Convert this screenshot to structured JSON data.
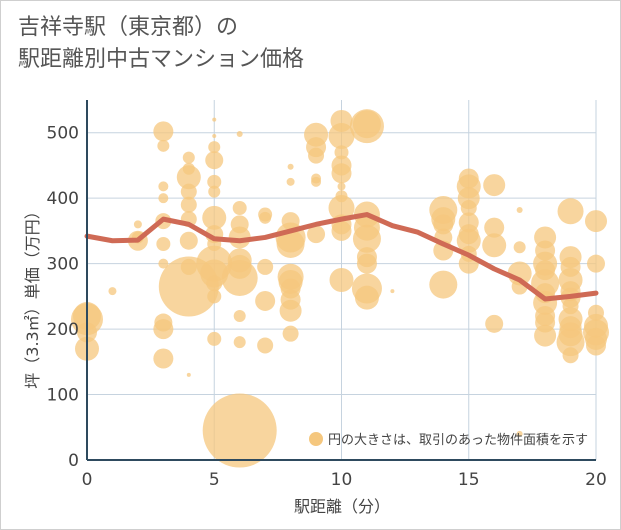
{
  "title_line1": "吉祥寺駅（東京都）の",
  "title_line2": "駅距離別中古マンション価格",
  "colors": {
    "bubble": "#f5c77e",
    "line": "#cf6a55",
    "grid": "#c6d3df",
    "axis": "#2e4a5e"
  },
  "chart_data": {
    "type": "scatter",
    "xlabel": "駅距離（分）",
    "ylabel": "坪（3.3㎡）単価（万円）",
    "xlim": [
      0,
      20
    ],
    "ylim": [
      0,
      550
    ],
    "xticks": [
      0,
      5,
      10,
      15,
      20
    ],
    "yticks": [
      0,
      100,
      200,
      300,
      400,
      500
    ],
    "legend_text": "円の大きさは、取引のあった物件面積を示す",
    "points": [
      [
        0,
        215,
        16
      ],
      [
        0,
        220,
        14
      ],
      [
        0,
        170,
        12
      ],
      [
        0,
        195,
        10
      ],
      [
        1,
        258,
        4
      ],
      [
        2,
        335,
        10
      ],
      [
        2,
        360,
        4
      ],
      [
        2,
        340,
        6
      ],
      [
        3,
        502,
        10
      ],
      [
        3,
        480,
        6
      ],
      [
        3,
        418,
        5
      ],
      [
        3,
        400,
        5
      ],
      [
        3,
        365,
        8
      ],
      [
        3,
        330,
        7
      ],
      [
        3,
        300,
        5
      ],
      [
        3,
        210,
        9
      ],
      [
        3,
        200,
        10
      ],
      [
        3,
        155,
        10
      ],
      [
        4,
        462,
        6
      ],
      [
        4,
        445,
        6
      ],
      [
        4,
        432,
        12
      ],
      [
        4,
        410,
        8
      ],
      [
        4,
        390,
        8
      ],
      [
        4,
        368,
        8
      ],
      [
        4,
        335,
        9
      ],
      [
        4,
        295,
        8
      ],
      [
        4,
        265,
        30
      ],
      [
        4,
        130,
        2
      ],
      [
        5,
        478,
        6
      ],
      [
        5,
        458,
        9
      ],
      [
        5,
        425,
        7
      ],
      [
        5,
        410,
        6
      ],
      [
        5,
        370,
        12
      ],
      [
        5,
        345,
        9
      ],
      [
        5,
        330,
        7
      ],
      [
        5,
        300,
        18
      ],
      [
        5,
        285,
        14
      ],
      [
        5,
        270,
        8
      ],
      [
        5,
        250,
        7
      ],
      [
        5,
        185,
        7
      ],
      [
        5,
        495,
        2
      ],
      [
        5,
        520,
        2
      ],
      [
        6,
        498,
        3
      ],
      [
        6,
        385,
        7
      ],
      [
        6,
        360,
        9
      ],
      [
        6,
        340,
        11
      ],
      [
        6,
        305,
        12
      ],
      [
        6,
        295,
        12
      ],
      [
        6,
        278,
        18
      ],
      [
        6,
        220,
        6
      ],
      [
        6,
        180,
        6
      ],
      [
        6,
        45,
        37
      ],
      [
        7,
        375,
        7
      ],
      [
        7,
        370,
        6
      ],
      [
        7,
        295,
        8
      ],
      [
        7,
        243,
        10
      ],
      [
        7,
        175,
        8
      ],
      [
        8,
        448,
        3
      ],
      [
        8,
        425,
        4
      ],
      [
        8,
        365,
        9
      ],
      [
        8,
        340,
        15
      ],
      [
        8,
        330,
        14
      ],
      [
        8,
        280,
        13
      ],
      [
        8,
        272,
        12
      ],
      [
        8,
        262,
        10
      ],
      [
        8,
        245,
        10
      ],
      [
        8,
        228,
        11
      ],
      [
        8,
        193,
        8
      ],
      [
        9,
        497,
        12
      ],
      [
        9,
        478,
        10
      ],
      [
        9,
        465,
        8
      ],
      [
        9,
        430,
        5
      ],
      [
        9,
        425,
        5
      ],
      [
        9,
        345,
        9
      ],
      [
        10,
        518,
        11
      ],
      [
        10,
        495,
        13
      ],
      [
        10,
        470,
        7
      ],
      [
        10,
        450,
        10
      ],
      [
        10,
        438,
        10
      ],
      [
        10,
        418,
        4
      ],
      [
        10,
        403,
        6
      ],
      [
        10,
        385,
        13
      ],
      [
        10,
        360,
        10
      ],
      [
        10,
        350,
        10
      ],
      [
        10,
        275,
        12
      ],
      [
        11,
        510,
        17
      ],
      [
        11,
        513,
        14
      ],
      [
        11,
        375,
        13
      ],
      [
        11,
        355,
        13
      ],
      [
        11,
        338,
        14
      ],
      [
        11,
        310,
        10
      ],
      [
        11,
        300,
        10
      ],
      [
        11,
        262,
        15
      ],
      [
        11,
        248,
        12
      ],
      [
        12,
        258,
        2
      ],
      [
        14,
        382,
        14
      ],
      [
        14,
        368,
        12
      ],
      [
        14,
        360,
        10
      ],
      [
        14,
        340,
        9
      ],
      [
        14,
        320,
        10
      ],
      [
        14,
        268,
        14
      ],
      [
        15,
        430,
        10
      ],
      [
        15,
        418,
        12
      ],
      [
        15,
        400,
        11
      ],
      [
        15,
        385,
        8
      ],
      [
        15,
        363,
        10
      ],
      [
        15,
        345,
        10
      ],
      [
        15,
        335,
        12
      ],
      [
        15,
        315,
        8
      ],
      [
        15,
        300,
        10
      ],
      [
        16,
        420,
        11
      ],
      [
        16,
        355,
        10
      ],
      [
        16,
        328,
        12
      ],
      [
        16,
        208,
        9
      ],
      [
        17,
        382,
        3
      ],
      [
        17,
        325,
        6
      ],
      [
        17,
        285,
        12
      ],
      [
        17,
        265,
        8
      ],
      [
        17,
        40,
        3
      ],
      [
        18,
        340,
        11
      ],
      [
        18,
        320,
        10
      ],
      [
        18,
        300,
        12
      ],
      [
        18,
        290,
        10
      ],
      [
        18,
        270,
        14
      ],
      [
        18,
        255,
        10
      ],
      [
        18,
        240,
        12
      ],
      [
        18,
        220,
        10
      ],
      [
        18,
        210,
        10
      ],
      [
        18,
        190,
        11
      ],
      [
        19,
        380,
        13
      ],
      [
        19,
        310,
        11
      ],
      [
        19,
        295,
        10
      ],
      [
        19,
        275,
        12
      ],
      [
        19,
        258,
        10
      ],
      [
        19,
        248,
        10
      ],
      [
        19,
        235,
        8
      ],
      [
        19,
        215,
        12
      ],
      [
        19,
        203,
        11
      ],
      [
        19,
        192,
        12
      ],
      [
        19,
        180,
        14
      ],
      [
        19,
        160,
        8
      ],
      [
        20,
        365,
        11
      ],
      [
        20,
        300,
        9
      ],
      [
        20,
        225,
        8
      ],
      [
        20,
        205,
        12
      ],
      [
        20,
        195,
        13
      ],
      [
        20,
        185,
        11
      ],
      [
        20,
        175,
        10
      ]
    ],
    "trend_x": [
      0,
      1,
      2,
      3,
      4,
      5,
      6,
      7,
      8,
      9,
      10,
      11,
      12,
      13,
      14,
      15,
      16,
      17,
      18,
      19,
      20
    ],
    "trend_y": [
      342,
      335,
      336,
      368,
      360,
      338,
      335,
      340,
      350,
      360,
      368,
      375,
      358,
      348,
      330,
      313,
      292,
      275,
      246,
      250,
      255
    ]
  }
}
